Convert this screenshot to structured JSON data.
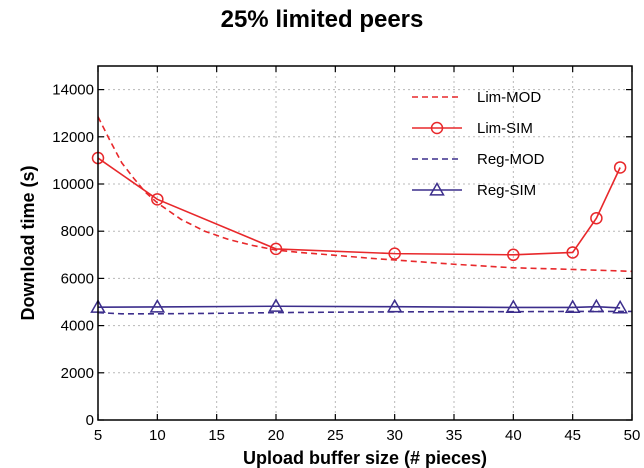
{
  "chart_data": {
    "type": "line",
    "title": "25%  limited peers",
    "xlabel": "Upload buffer size (# pieces)",
    "ylabel": "Download time (s)",
    "xlim": [
      5,
      50
    ],
    "ylim": [
      0,
      15000
    ],
    "xticks": [
      5,
      10,
      15,
      20,
      25,
      30,
      35,
      40,
      45,
      50
    ],
    "yticks": [
      0,
      2000,
      4000,
      6000,
      8000,
      10000,
      12000,
      14000
    ],
    "grid": true,
    "legend_position": "top-right",
    "series": [
      {
        "name": "Lim-MOD",
        "color": "#e8282b",
        "line_style": "dashed",
        "marker": "none",
        "x": [
          5,
          6,
          7,
          8,
          9,
          10,
          12,
          14,
          16,
          18,
          20,
          22,
          25,
          28,
          30,
          35,
          40,
          45,
          50
        ],
        "y": [
          12850,
          11850,
          10900,
          10250,
          9650,
          9200,
          8500,
          8000,
          7650,
          7400,
          7200,
          7100,
          6980,
          6850,
          6780,
          6600,
          6450,
          6380,
          6300
        ]
      },
      {
        "name": "Lim-SIM",
        "color": "#e8282b",
        "line_style": "solid",
        "marker": "circle",
        "x": [
          5,
          10,
          20,
          30,
          40,
          45,
          47,
          49
        ],
        "y": [
          11100,
          9350,
          7250,
          7050,
          7000,
          7100,
          8550,
          10700
        ]
      },
      {
        "name": "Reg-MOD",
        "color": "#3c2e8c",
        "line_style": "dashed",
        "marker": "none",
        "x": [
          5,
          7,
          10,
          15,
          20,
          25,
          30,
          35,
          40,
          45,
          50
        ],
        "y": [
          4550,
          4500,
          4500,
          4520,
          4550,
          4570,
          4580,
          4590,
          4590,
          4600,
          4600
        ]
      },
      {
        "name": "Reg-SIM",
        "color": "#3c2e8c",
        "line_style": "solid",
        "marker": "triangle",
        "x": [
          5,
          10,
          20,
          30,
          40,
          45,
          47,
          49
        ],
        "y": [
          4780,
          4790,
          4820,
          4800,
          4770,
          4770,
          4800,
          4750
        ]
      }
    ]
  }
}
